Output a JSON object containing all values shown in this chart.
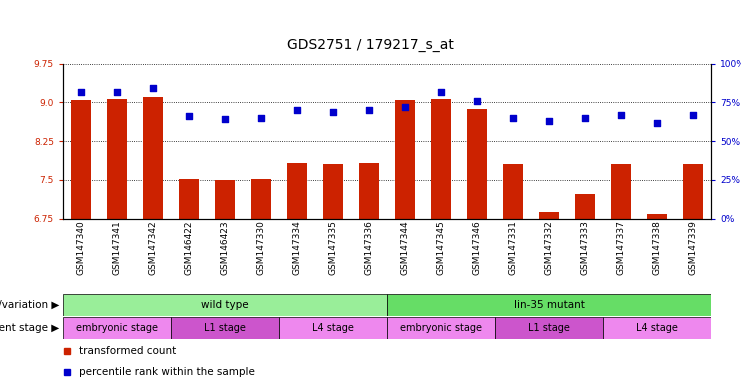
{
  "title": "GDS2751 / 179217_s_at",
  "samples": [
    "GSM147340",
    "GSM147341",
    "GSM147342",
    "GSM146422",
    "GSM146423",
    "GSM147330",
    "GSM147334",
    "GSM147335",
    "GSM147336",
    "GSM147344",
    "GSM147345",
    "GSM147346",
    "GSM147331",
    "GSM147332",
    "GSM147333",
    "GSM147337",
    "GSM147338",
    "GSM147339"
  ],
  "transformed_count": [
    9.04,
    9.06,
    9.1,
    7.52,
    7.5,
    7.52,
    7.83,
    7.8,
    7.83,
    9.04,
    9.06,
    8.88,
    7.8,
    6.88,
    7.22,
    7.8,
    6.84,
    7.8
  ],
  "percentile_rank": [
    82,
    82,
    84,
    66,
    64,
    65,
    70,
    69,
    70,
    72,
    82,
    76,
    65,
    63,
    65,
    67,
    62,
    67
  ],
  "ylim_left": [
    6.75,
    9.75
  ],
  "ylim_right": [
    0,
    100
  ],
  "yticks_left": [
    6.75,
    7.5,
    8.25,
    9.0,
    9.75
  ],
  "yticks_right": [
    0,
    25,
    50,
    75,
    100
  ],
  "bar_color": "#cc2200",
  "dot_color": "#0000cc",
  "bar_bottom": 6.75,
  "genotype_groups": [
    {
      "label": "wild type",
      "start": 0,
      "end": 9,
      "color": "#99ee99"
    },
    {
      "label": "lin-35 mutant",
      "start": 9,
      "end": 18,
      "color": "#66dd66"
    }
  ],
  "dev_stage_groups": [
    {
      "label": "embryonic stage",
      "start": 0,
      "end": 3,
      "color": "#ee88ee"
    },
    {
      "label": "L1 stage",
      "start": 3,
      "end": 6,
      "color": "#cc55cc"
    },
    {
      "label": "L4 stage",
      "start": 6,
      "end": 9,
      "color": "#ee88ee"
    },
    {
      "label": "embryonic stage",
      "start": 9,
      "end": 12,
      "color": "#ee88ee"
    },
    {
      "label": "L1 stage",
      "start": 12,
      "end": 15,
      "color": "#cc55cc"
    },
    {
      "label": "L4 stage",
      "start": 15,
      "end": 18,
      "color": "#ee88ee"
    }
  ],
  "legend_items": [
    {
      "label": "transformed count",
      "color": "#cc2200"
    },
    {
      "label": "percentile rank within the sample",
      "color": "#0000cc"
    }
  ],
  "genotype_label": "genotype/variation",
  "dev_stage_label": "development stage",
  "title_fontsize": 10,
  "tick_fontsize": 6.5,
  "label_fontsize": 7.5,
  "row_fontsize": 7.5,
  "legend_fontsize": 7.5
}
